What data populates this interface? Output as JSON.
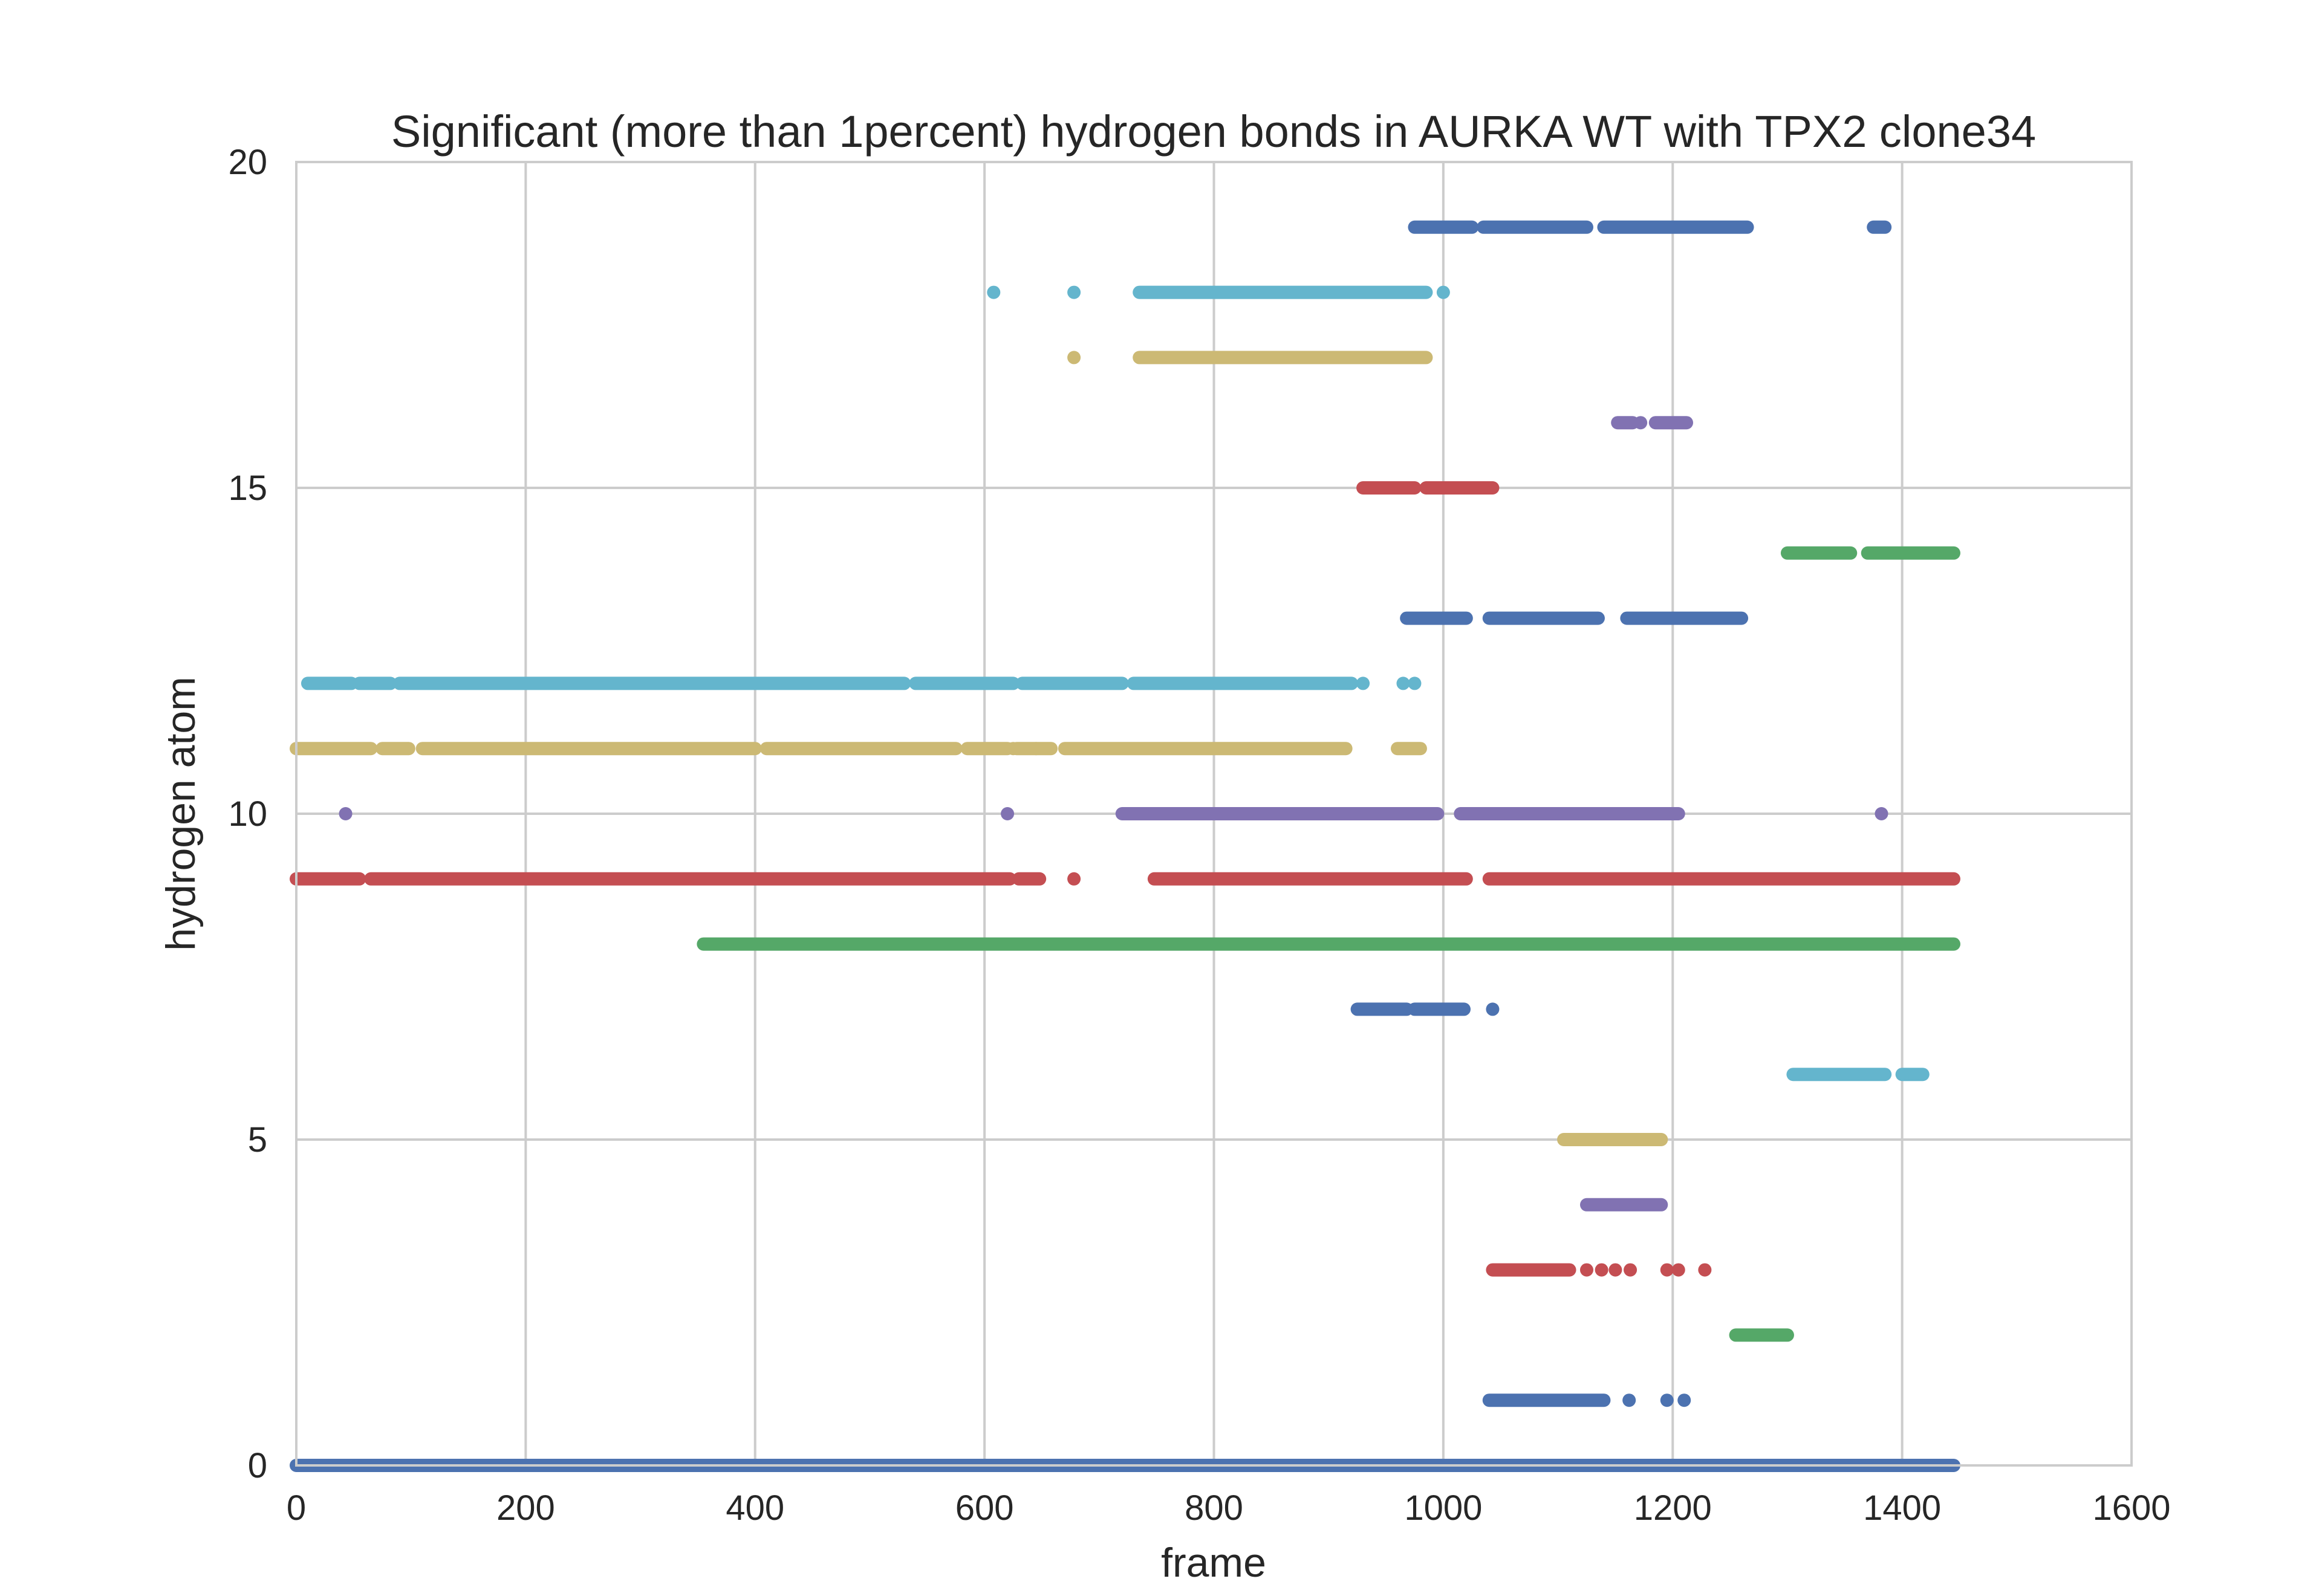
{
  "chart_data": {
    "type": "scatter",
    "title": "Significant (more than 1percent) hydrogen bonds in AURKA WT with TPX2 clone34",
    "xlabel": "frame",
    "ylabel": "hydrogen atom",
    "xlim": [
      0,
      1600
    ],
    "ylim": [
      0,
      20
    ],
    "xticks": [
      0,
      200,
      400,
      600,
      800,
      1000,
      1200,
      1400,
      1600
    ],
    "yticks": [
      0,
      5,
      10,
      15,
      20
    ],
    "grid": true,
    "legend": "none",
    "palette": [
      "#4c72b0",
      "#55a868",
      "#c44e52",
      "#8172b2",
      "#ccb974",
      "#64b5cd"
    ],
    "series": [
      {
        "y": 0,
        "color": "#4c72b0",
        "segments": [
          [
            0,
            1445
          ]
        ],
        "points": []
      },
      {
        "y": 1,
        "color": "#4c72b0",
        "segments": [
          [
            1040,
            1140
          ]
        ],
        "points": [
          1162,
          1195,
          1210
        ]
      },
      {
        "y": 2,
        "color": "#55a868",
        "segments": [
          [
            1255,
            1300
          ]
        ],
        "points": []
      },
      {
        "y": 3,
        "color": "#c44e52",
        "segments": [
          [
            1043,
            1110
          ]
        ],
        "points": [
          1125,
          1138,
          1150,
          1163,
          1195,
          1205,
          1228
        ]
      },
      {
        "y": 4,
        "color": "#8172b2",
        "segments": [
          [
            1125,
            1190
          ]
        ],
        "points": []
      },
      {
        "y": 5,
        "color": "#ccb974",
        "segments": [
          [
            1105,
            1190
          ]
        ],
        "points": []
      },
      {
        "y": 6,
        "color": "#64b5cd",
        "segments": [
          [
            1305,
            1385
          ],
          [
            1400,
            1418
          ]
        ],
        "points": []
      },
      {
        "y": 7,
        "color": "#4c72b0",
        "segments": [
          [
            925,
            968
          ],
          [
            975,
            1018
          ]
        ],
        "points": [
          1043
        ]
      },
      {
        "y": 8,
        "color": "#55a868",
        "segments": [
          [
            355,
            1445
          ]
        ],
        "points": []
      },
      {
        "y": 9,
        "color": "#c44e52",
        "segments": [
          [
            0,
            55
          ],
          [
            65,
            622
          ],
          [
            630,
            648
          ],
          [
            748,
            1020
          ],
          [
            1040,
            1445
          ]
        ],
        "points": [
          678
        ]
      },
      {
        "y": 10,
        "color": "#8172b2",
        "segments": [
          [
            720,
            995
          ],
          [
            1015,
            1205
          ]
        ],
        "points": [
          43,
          620,
          1382
        ]
      },
      {
        "y": 11,
        "color": "#ccb974",
        "segments": [
          [
            0,
            65
          ],
          [
            75,
            98
          ],
          [
            110,
            400
          ],
          [
            410,
            575
          ],
          [
            585,
            620
          ],
          [
            625,
            625
          ],
          [
            628,
            658
          ],
          [
            670,
            915
          ],
          [
            960,
            980
          ]
        ],
        "points": [
          645
        ]
      },
      {
        "y": 12,
        "color": "#64b5cd",
        "segments": [
          [
            10,
            48
          ],
          [
            55,
            82
          ],
          [
            90,
            530
          ],
          [
            540,
            625
          ],
          [
            633,
            720
          ],
          [
            730,
            920
          ]
        ],
        "points": [
          930,
          965,
          975
        ]
      },
      {
        "y": 13,
        "color": "#4c72b0",
        "segments": [
          [
            968,
            1020
          ],
          [
            1040,
            1135
          ],
          [
            1160,
            1260
          ]
        ],
        "points": []
      },
      {
        "y": 14,
        "color": "#55a868",
        "segments": [
          [
            1300,
            1355
          ],
          [
            1370,
            1445
          ]
        ],
        "points": []
      },
      {
        "y": 15,
        "color": "#c44e52",
        "segments": [
          [
            930,
            975
          ],
          [
            985,
            1043
          ]
        ],
        "points": []
      },
      {
        "y": 16,
        "color": "#8172b2",
        "segments": [
          [
            1152,
            1165
          ],
          [
            1185,
            1212
          ]
        ],
        "points": [
          1172
        ]
      },
      {
        "y": 17,
        "color": "#ccb974",
        "segments": [
          [
            735,
            985
          ]
        ],
        "points": [
          678
        ]
      },
      {
        "y": 18,
        "color": "#64b5cd",
        "segments": [
          [
            735,
            985
          ]
        ],
        "points": [
          608,
          678,
          1000
        ]
      },
      {
        "y": 19,
        "color": "#4c72b0",
        "segments": [
          [
            975,
            1025
          ],
          [
            1035,
            1125
          ],
          [
            1140,
            1265
          ],
          [
            1375,
            1385
          ]
        ],
        "points": []
      }
    ]
  }
}
